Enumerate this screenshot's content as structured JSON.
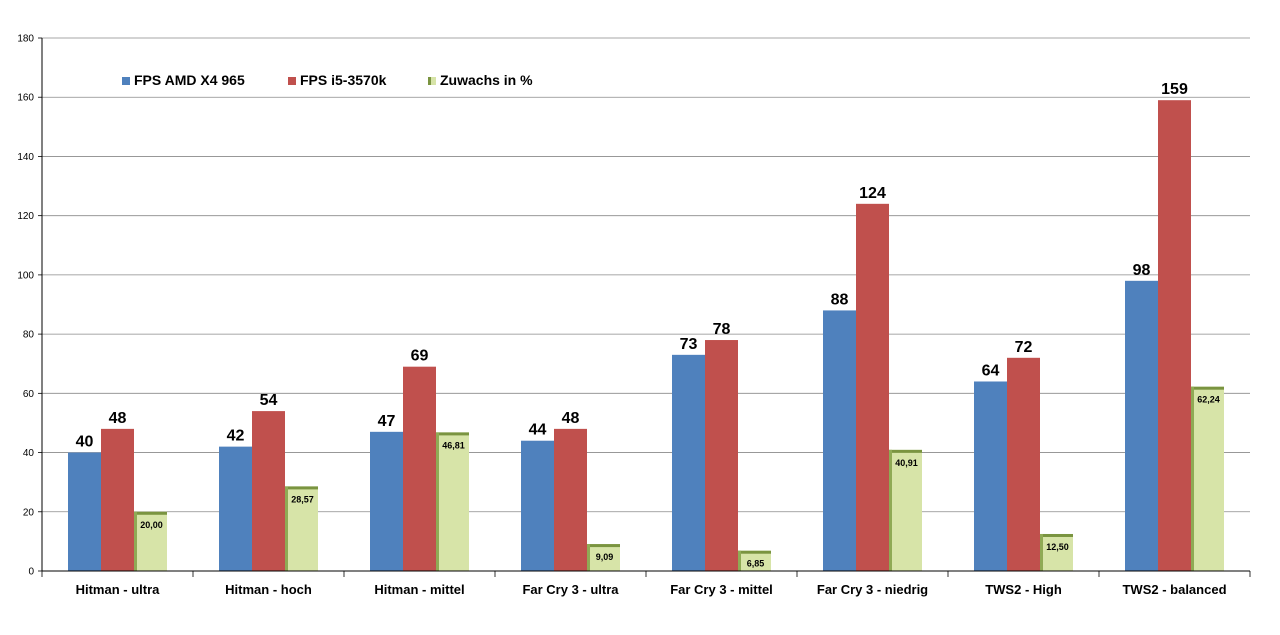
{
  "chart_data": {
    "type": "bar",
    "title": "",
    "xlabel": "",
    "ylabel": "",
    "ylim": [
      0,
      180
    ],
    "yticks": [
      0,
      20,
      40,
      60,
      80,
      100,
      120,
      140,
      160,
      180
    ],
    "grid": true,
    "legend_position": "top-left",
    "categories": [
      "Hitman - ultra",
      "Hitman - hoch",
      "Hitman - mittel",
      "Far Cry 3 - ultra",
      "Far Cry 3 - mittel",
      "Far Cry 3 - niedrig",
      "TWS2 - High",
      "TWS2 - balanced"
    ],
    "series": [
      {
        "name": "FPS AMD X4 965",
        "color": "#4f81bd",
        "values": [
          40,
          42,
          47,
          44,
          73,
          88,
          64,
          98
        ],
        "labels": [
          "40",
          "42",
          "47",
          "44",
          "73",
          "88",
          "64",
          "98"
        ]
      },
      {
        "name": "FPS i5-3570k",
        "color": "#c0504d",
        "values": [
          48,
          54,
          69,
          48,
          78,
          124,
          72,
          159
        ],
        "labels": [
          "48",
          "54",
          "69",
          "48",
          "78",
          "124",
          "72",
          "159"
        ]
      },
      {
        "name": "Zuwachs in %",
        "color": "#d7e4a8",
        "values": [
          20.0,
          28.57,
          46.81,
          9.09,
          6.85,
          40.91,
          12.5,
          62.24
        ],
        "labels": [
          "20,00",
          "28,57",
          "46,81",
          "9,09",
          "6,85",
          "40,91",
          "12,50",
          "62,24"
        ]
      }
    ]
  }
}
